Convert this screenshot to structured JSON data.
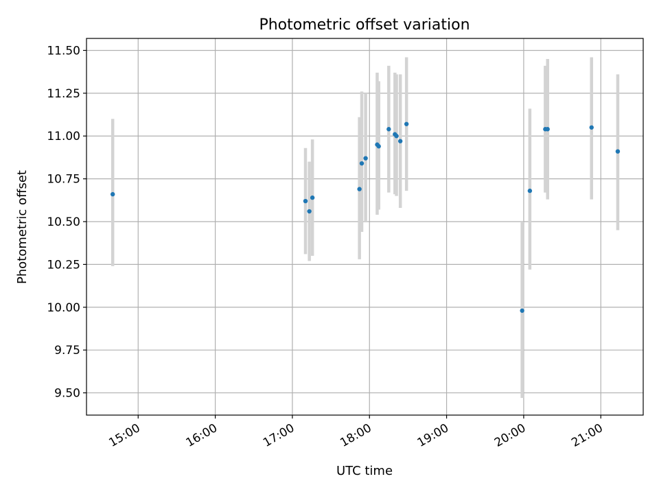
{
  "chart_data": {
    "type": "scatter",
    "title": "Photometric offset variation",
    "xlabel": "UTC time",
    "ylabel": "Photometric offset",
    "x_unit": "hours",
    "xlim": [
      14.33,
      21.55
    ],
    "ylim": [
      9.37,
      11.57
    ],
    "x_ticks": [
      {
        "value": 15,
        "label": "15:00"
      },
      {
        "value": 16,
        "label": "16:00"
      },
      {
        "value": 17,
        "label": "17:00"
      },
      {
        "value": 18,
        "label": "18:00"
      },
      {
        "value": 19,
        "label": "19:00"
      },
      {
        "value": 20,
        "label": "20:00"
      },
      {
        "value": 21,
        "label": "21:00"
      }
    ],
    "y_ticks": [
      {
        "value": 9.5,
        "label": "9.50"
      },
      {
        "value": 9.75,
        "label": "9.75"
      },
      {
        "value": 10.0,
        "label": "10.00"
      },
      {
        "value": 10.25,
        "label": "10.25"
      },
      {
        "value": 10.5,
        "label": "10.50"
      },
      {
        "value": 10.75,
        "label": "10.75"
      },
      {
        "value": 11.0,
        "label": "11.00"
      },
      {
        "value": 11.25,
        "label": "11.25"
      },
      {
        "value": 11.5,
        "label": "11.50"
      }
    ],
    "grid": true,
    "point_color": "#1f77b4",
    "errorbar_color": "#d3d3d3",
    "points": [
      {
        "x": 14.67,
        "y": 10.66,
        "ylow": 10.24,
        "yhigh": 11.1
      },
      {
        "x": 17.17,
        "y": 10.62,
        "ylow": 10.31,
        "yhigh": 10.93
      },
      {
        "x": 17.22,
        "y": 10.56,
        "ylow": 10.27,
        "yhigh": 10.85
      },
      {
        "x": 17.26,
        "y": 10.64,
        "ylow": 10.3,
        "yhigh": 10.98
      },
      {
        "x": 17.87,
        "y": 10.69,
        "ylow": 10.28,
        "yhigh": 11.11
      },
      {
        "x": 17.9,
        "y": 10.84,
        "ylow": 10.44,
        "yhigh": 11.26
      },
      {
        "x": 17.95,
        "y": 10.87,
        "ylow": 10.5,
        "yhigh": 11.25
      },
      {
        "x": 18.1,
        "y": 10.95,
        "ylow": 10.54,
        "yhigh": 11.37
      },
      {
        "x": 18.12,
        "y": 10.94,
        "ylow": 10.57,
        "yhigh": 11.32
      },
      {
        "x": 18.25,
        "y": 11.04,
        "ylow": 10.67,
        "yhigh": 11.41
      },
      {
        "x": 18.33,
        "y": 11.01,
        "ylow": 10.66,
        "yhigh": 11.37
      },
      {
        "x": 18.35,
        "y": 11.0,
        "ylow": 10.65,
        "yhigh": 11.36
      },
      {
        "x": 18.4,
        "y": 10.97,
        "ylow": 10.58,
        "yhigh": 11.36
      },
      {
        "x": 18.48,
        "y": 11.07,
        "ylow": 10.68,
        "yhigh": 11.46
      },
      {
        "x": 19.98,
        "y": 9.98,
        "ylow": 9.47,
        "yhigh": 10.5
      },
      {
        "x": 20.08,
        "y": 10.68,
        "ylow": 10.22,
        "yhigh": 11.16
      },
      {
        "x": 20.28,
        "y": 11.04,
        "ylow": 10.67,
        "yhigh": 11.41
      },
      {
        "x": 20.31,
        "y": 11.04,
        "ylow": 10.63,
        "yhigh": 11.45
      },
      {
        "x": 20.88,
        "y": 11.05,
        "ylow": 10.63,
        "yhigh": 11.46
      },
      {
        "x": 21.22,
        "y": 10.91,
        "ylow": 10.45,
        "yhigh": 11.36
      }
    ]
  }
}
